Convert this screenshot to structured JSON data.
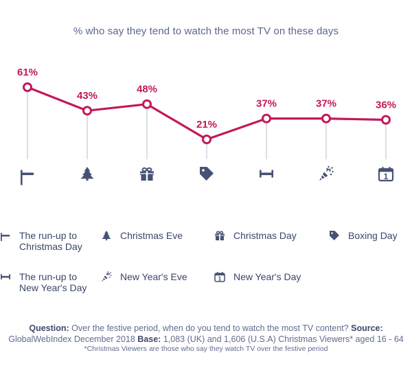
{
  "title": "% who say they tend to watch the most TV on these days",
  "colors": {
    "line": "#c2185b",
    "icon": "#475273",
    "drop": "#b9bfcf"
  },
  "chart_data": {
    "type": "line",
    "title": "% who say they tend to watch the most TV on these days",
    "categories": [
      "The run-up to Christmas Day",
      "Christmas Eve",
      "Christmas Day",
      "Boxing Day",
      "The run-up to New Year's Day",
      "New Year's Eve",
      "New Year's Day"
    ],
    "values": [
      61,
      43,
      48,
      21,
      37,
      37,
      36
    ],
    "value_labels": [
      "61%",
      "43%",
      "48%",
      "21%",
      "37%",
      "37%",
      "36%"
    ],
    "icons": [
      "runup-christmas-icon",
      "tree-icon",
      "gift-icon",
      "tag-icon",
      "runup-newyear-icon",
      "party-popper-icon",
      "calendar-icon"
    ],
    "calendar_number": "1",
    "unit": "%",
    "grid": false
  },
  "legend": [
    {
      "label": "The run-up to Christmas Day",
      "icon": "runup-christmas-icon"
    },
    {
      "label": "Christmas Eve",
      "icon": "tree-icon"
    },
    {
      "label": "Christmas Day",
      "icon": "gift-icon"
    },
    {
      "label": "Boxing Day",
      "icon": "tag-icon"
    },
    {
      "label": "The run-up to New Year's Day",
      "icon": "runup-newyear-icon"
    },
    {
      "label": "New Year's Eve",
      "icon": "party-popper-icon"
    },
    {
      "label": "New Year's Day",
      "icon": "calendar-icon"
    }
  ],
  "footer": {
    "question_label": "Question:",
    "question_text": " Over the festive period, when do you tend to watch the most TV content? ",
    "source_label": "Source:",
    "source_text": " GlobalWebIndex December 2018 ",
    "base_label": "Base:",
    "base_text": " 1,083 (UK) and 1,606 (U.S.A) Christmas Viewers* aged 16 - 64",
    "note": "*Christmas Viewers are those who say they watch TV over the festive period"
  }
}
